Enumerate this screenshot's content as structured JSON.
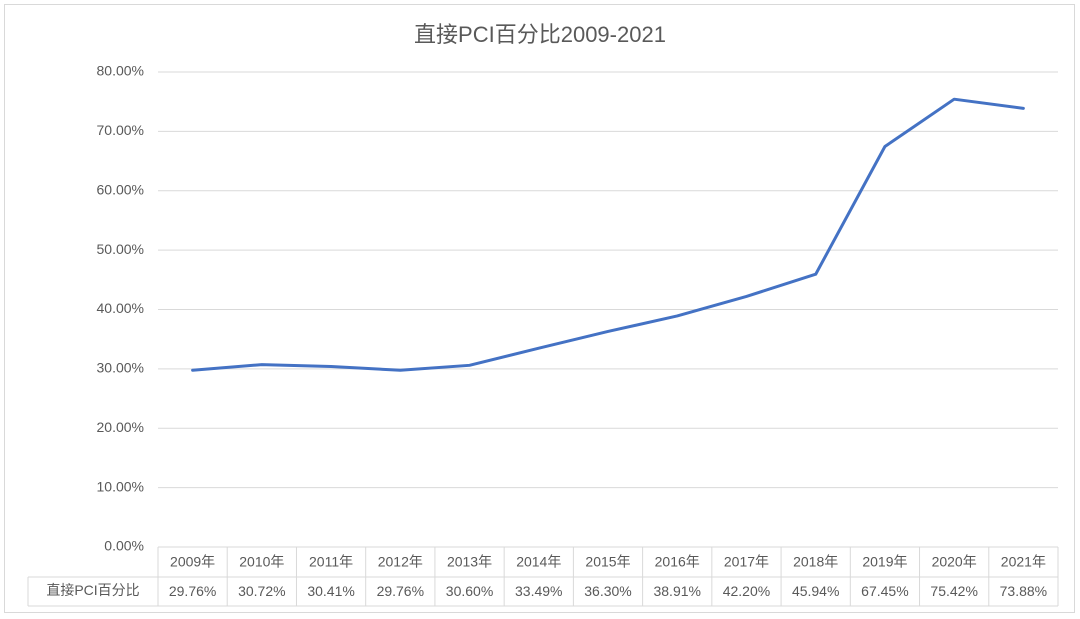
{
  "chart_data": {
    "type": "line",
    "title": "直接PCI百分比2009-2021",
    "categories": [
      "2009年",
      "2010年",
      "2011年",
      "2012年",
      "2013年",
      "2014年",
      "2015年",
      "2016年",
      "2017年",
      "2018年",
      "2019年",
      "2020年",
      "2021年"
    ],
    "series": [
      {
        "name": "直接PCI百分比",
        "color": "#4472c4",
        "values": [
          29.76,
          30.72,
          30.41,
          29.76,
          30.6,
          33.49,
          36.3,
          38.91,
          42.2,
          45.94,
          67.45,
          75.42,
          73.88
        ],
        "value_labels": [
          "29.76%",
          "30.72%",
          "30.41%",
          "29.76%",
          "30.60%",
          "33.49%",
          "36.30%",
          "38.91%",
          "42.20%",
          "45.94%",
          "67.45%",
          "75.42%",
          "73.88%"
        ]
      }
    ],
    "ylim": [
      0,
      80
    ],
    "yticks": [
      {
        "value": 0,
        "label": "0.00%"
      },
      {
        "value": 10,
        "label": "10.00%"
      },
      {
        "value": 20,
        "label": "20.00%"
      },
      {
        "value": 30,
        "label": "30.00%"
      },
      {
        "value": 40,
        "label": "40.00%"
      },
      {
        "value": 50,
        "label": "50.00%"
      },
      {
        "value": 60,
        "label": "60.00%"
      },
      {
        "value": 70,
        "label": "70.00%"
      },
      {
        "value": 80,
        "label": "80.00%"
      }
    ],
    "grid": true
  }
}
